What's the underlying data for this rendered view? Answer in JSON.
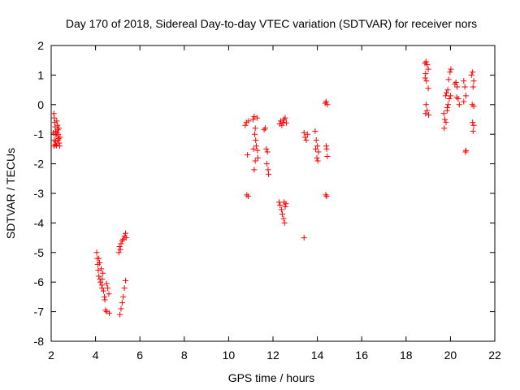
{
  "chart_data": {
    "type": "scatter",
    "title": "Day 170 of 2018, Sidereal Day-to-day VTEC variation (SDTVAR) for receiver nors",
    "xlabel": "GPS time / hours",
    "ylabel": "SDTVAR / TECUs",
    "xlim": [
      2,
      22
    ],
    "ylim": [
      -8,
      2
    ],
    "xticks": [
      2,
      4,
      6,
      8,
      10,
      12,
      14,
      16,
      18,
      20,
      22
    ],
    "yticks": [
      -8,
      -7,
      -6,
      -5,
      -4,
      -3,
      -2,
      -1,
      0,
      1,
      2
    ],
    "grid": false,
    "legend": "none",
    "marker": "+",
    "color": "#ff0000",
    "series": [
      {
        "name": "SDTVAR",
        "points": [
          [
            2.12,
            -0.3
          ],
          [
            2.14,
            -0.45
          ],
          [
            2.16,
            -0.6
          ],
          [
            2.18,
            -0.75
          ],
          [
            2.2,
            -0.9
          ],
          [
            2.22,
            -1.05
          ],
          [
            2.14,
            -1.2
          ],
          [
            2.18,
            -1.35
          ],
          [
            2.25,
            -0.55
          ],
          [
            2.28,
            -0.7
          ],
          [
            2.3,
            -0.85
          ],
          [
            2.32,
            -1.0
          ],
          [
            2.34,
            -1.15
          ],
          [
            2.36,
            -1.3
          ],
          [
            2.38,
            -1.4
          ],
          [
            2.4,
            -1.1
          ],
          [
            2.2,
            -1.25
          ],
          [
            2.26,
            -0.95
          ],
          [
            2.3,
            -1.2
          ],
          [
            2.35,
            -0.8
          ],
          [
            2.1,
            -0.95
          ],
          [
            2.12,
            -1.4
          ],
          [
            2.24,
            -1.38
          ],
          [
            4.05,
            -5.0
          ],
          [
            4.08,
            -5.2
          ],
          [
            4.1,
            -5.4
          ],
          [
            4.12,
            -5.6
          ],
          [
            4.15,
            -5.8
          ],
          [
            4.18,
            -5.35
          ],
          [
            4.2,
            -5.9
          ],
          [
            4.22,
            -6.0
          ],
          [
            4.25,
            -5.55
          ],
          [
            4.28,
            -6.1
          ],
          [
            4.3,
            -6.2
          ],
          [
            4.33,
            -5.7
          ],
          [
            4.36,
            -6.3
          ],
          [
            4.4,
            -6.5
          ],
          [
            4.42,
            -6.6
          ],
          [
            4.45,
            -6.95
          ],
          [
            4.5,
            -7.0
          ],
          [
            4.55,
            -6.2
          ],
          [
            4.6,
            -6.4
          ],
          [
            4.62,
            -7.05
          ],
          [
            4.15,
            -5.2
          ],
          [
            4.3,
            -5.9
          ],
          [
            4.5,
            -6.05
          ],
          [
            5.05,
            -5.0
          ],
          [
            5.08,
            -4.8
          ],
          [
            5.12,
            -4.9
          ],
          [
            5.15,
            -4.7
          ],
          [
            5.2,
            -4.6
          ],
          [
            5.25,
            -4.55
          ],
          [
            5.3,
            -4.45
          ],
          [
            5.35,
            -4.35
          ],
          [
            5.38,
            -4.5
          ],
          [
            5.1,
            -7.1
          ],
          [
            5.15,
            -6.9
          ],
          [
            5.2,
            -6.7
          ],
          [
            5.25,
            -6.5
          ],
          [
            5.3,
            -6.2
          ],
          [
            5.35,
            -5.95
          ],
          [
            10.75,
            -0.7
          ],
          [
            10.8,
            -0.6
          ],
          [
            10.85,
            -1.7
          ],
          [
            10.82,
            -3.05
          ],
          [
            10.88,
            -3.1
          ],
          [
            10.9,
            -0.55
          ],
          [
            11.1,
            -0.5
          ],
          [
            11.15,
            -0.4
          ],
          [
            11.2,
            -0.8
          ],
          [
            11.18,
            -1.0
          ],
          [
            11.22,
            -1.2
          ],
          [
            11.25,
            -1.4
          ],
          [
            11.3,
            -1.55
          ],
          [
            11.2,
            -1.9
          ],
          [
            11.15,
            -2.2
          ],
          [
            11.28,
            -0.45
          ],
          [
            11.32,
            -1.8
          ],
          [
            11.12,
            -1.5
          ],
          [
            11.6,
            -0.85
          ],
          [
            11.65,
            -0.8
          ],
          [
            11.7,
            -1.5
          ],
          [
            11.75,
            -1.6
          ],
          [
            11.72,
            -2.0
          ],
          [
            11.78,
            -2.2
          ],
          [
            11.8,
            -2.35
          ],
          [
            12.3,
            -0.65
          ],
          [
            12.35,
            -0.55
          ],
          [
            12.4,
            -0.7
          ],
          [
            12.45,
            -0.6
          ],
          [
            12.5,
            -0.5
          ],
          [
            12.55,
            -0.45
          ],
          [
            12.6,
            -0.62
          ],
          [
            12.28,
            -3.3
          ],
          [
            12.32,
            -3.4
          ],
          [
            12.38,
            -3.55
          ],
          [
            12.42,
            -3.7
          ],
          [
            12.48,
            -3.85
          ],
          [
            12.52,
            -4.0
          ],
          [
            12.5,
            -3.3
          ],
          [
            12.55,
            -3.45
          ],
          [
            12.58,
            -3.35
          ],
          [
            13.4,
            -0.95
          ],
          [
            13.45,
            -1.1
          ],
          [
            13.5,
            -1.2
          ],
          [
            13.55,
            -1.0
          ],
          [
            13.4,
            -4.5
          ],
          [
            13.9,
            -0.9
          ],
          [
            13.95,
            -1.2
          ],
          [
            14.0,
            -1.4
          ],
          [
            14.05,
            -1.6
          ],
          [
            13.98,
            -1.8
          ],
          [
            14.02,
            -1.9
          ],
          [
            13.92,
            -1.5
          ],
          [
            14.35,
            0.05
          ],
          [
            14.4,
            0.1
          ],
          [
            14.45,
            0.0
          ],
          [
            14.4,
            -1.4
          ],
          [
            14.42,
            -1.5
          ],
          [
            14.45,
            -1.75
          ],
          [
            14.38,
            -3.05
          ],
          [
            14.42,
            -3.1
          ],
          [
            18.85,
            1.4
          ],
          [
            18.9,
            1.45
          ],
          [
            18.95,
            1.35
          ],
          [
            19.0,
            1.2
          ],
          [
            18.88,
            1.05
          ],
          [
            18.92,
            0.8
          ],
          [
            19.0,
            0.55
          ],
          [
            18.9,
            0.0
          ],
          [
            18.95,
            -0.2
          ],
          [
            19.02,
            -0.35
          ],
          [
            18.88,
            -0.3
          ],
          [
            18.86,
            0.9
          ],
          [
            19.7,
            -0.3
          ],
          [
            19.75,
            -0.5
          ],
          [
            19.8,
            -0.6
          ],
          [
            19.85,
            -0.2
          ],
          [
            19.9,
            0.0
          ],
          [
            19.95,
            0.2
          ],
          [
            19.72,
            -0.8
          ],
          [
            19.78,
            0.3
          ],
          [
            19.82,
            0.4
          ],
          [
            19.88,
            0.5
          ],
          [
            19.92,
            0.85
          ],
          [
            19.98,
            1.1
          ],
          [
            20.02,
            1.2
          ],
          [
            19.86,
            -0.1
          ],
          [
            20.0,
            0.3
          ],
          [
            20.2,
            0.7
          ],
          [
            20.25,
            0.75
          ],
          [
            20.3,
            0.6
          ],
          [
            20.35,
            0.2
          ],
          [
            20.4,
            0.0
          ],
          [
            20.28,
            0.25
          ],
          [
            20.6,
            0.8
          ],
          [
            20.65,
            0.6
          ],
          [
            20.7,
            0.3
          ],
          [
            20.6,
            0.1
          ],
          [
            20.68,
            -1.6
          ],
          [
            20.7,
            -1.55
          ],
          [
            20.95,
            1.0
          ],
          [
            21.0,
            1.1
          ],
          [
            21.05,
            0.8
          ],
          [
            21.02,
            0.6
          ],
          [
            20.98,
            0.0
          ],
          [
            21.05,
            -0.05
          ],
          [
            21.0,
            -0.6
          ],
          [
            21.05,
            -0.7
          ],
          [
            21.02,
            -0.9
          ]
        ]
      }
    ]
  }
}
